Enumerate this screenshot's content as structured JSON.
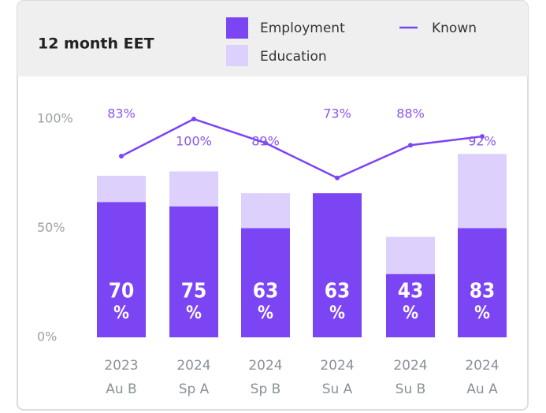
{
  "chart_data": {
    "type": "stacked-bar-line",
    "title": "12 month EET",
    "categories": [
      [
        "2023",
        "Au B"
      ],
      [
        "2024",
        "Sp A"
      ],
      [
        "2024",
        "Sp B"
      ],
      [
        "2024",
        "Su A"
      ],
      [
        "2024",
        "Su B"
      ],
      [
        "2024",
        "Au A"
      ]
    ],
    "series": [
      {
        "name": "Employment",
        "color": "#7b45f4",
        "values": [
          62,
          60,
          50,
          66,
          29,
          50
        ]
      },
      {
        "name": "Education",
        "color": "#ddd0fc",
        "values": [
          12,
          16,
          16,
          0,
          17,
          34
        ]
      },
      {
        "name": "Known",
        "color": "#7b45f4",
        "type": "line",
        "values": [
          83,
          100,
          89,
          73,
          88,
          92
        ],
        "value_labels": [
          "83%",
          "100%",
          "89%",
          "73%",
          "88%",
          "92%"
        ]
      }
    ],
    "eet": {
      "values": [
        70,
        75,
        63,
        63,
        43,
        83
      ],
      "unit": "%"
    },
    "ylim": [
      0,
      100
    ],
    "yticks": [
      {
        "value": 0,
        "label": "0%"
      },
      {
        "value": 50,
        "label": "50%"
      },
      {
        "value": 100,
        "label": "100%"
      }
    ]
  }
}
